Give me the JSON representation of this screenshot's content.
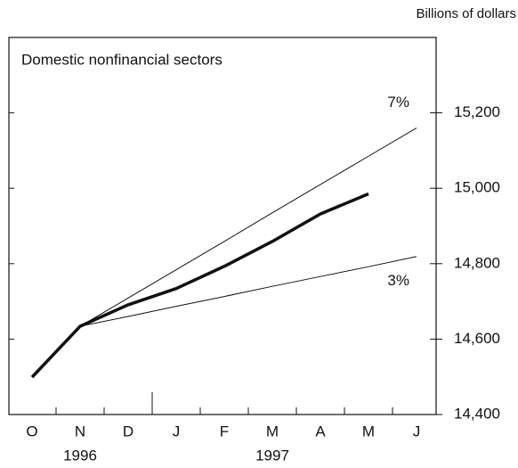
{
  "chart_data": {
    "type": "line",
    "title": "Domestic nonfinancial sectors",
    "y_axis_label": "Billions of dollars",
    "categories": [
      "O",
      "N",
      "D",
      "J",
      "F",
      "M",
      "A",
      "M",
      "J"
    ],
    "years": [
      "1996",
      "1997"
    ],
    "series": [
      {
        "color": "#111111",
        "values": [
          14499,
          14634,
          14691,
          14734,
          14793,
          14859,
          14932,
          14985,
          null
        ]
      },
      {
        "name": "7%",
        "color": "#111111",
        "values": [
          null,
          14634,
          14709,
          14784,
          14859,
          14935,
          15010,
          15085,
          15160
        ]
      },
      {
        "name": "3%",
        "color": "#111111",
        "values": [
          null,
          14634,
          14660,
          14687,
          14713,
          14740,
          14766,
          14792,
          14819
        ]
      }
    ],
    "ylim": [
      14400,
      15400
    ],
    "yticks": [
      {
        "value": 14400,
        "label": "14,400"
      },
      {
        "value": 14600,
        "label": "14,600"
      },
      {
        "value": 14800,
        "label": "14,800"
      },
      {
        "value": 15000,
        "label": "15,000"
      },
      {
        "value": 15200,
        "label": "15,200"
      }
    ]
  }
}
